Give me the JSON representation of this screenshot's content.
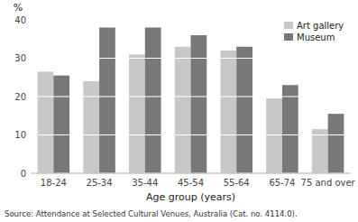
{
  "chart_data": {
    "type": "bar",
    "categories": [
      "18-24",
      "25-34",
      "35-44",
      "45-54",
      "55-64",
      "65-74",
      "75 and over"
    ],
    "series": [
      {
        "name": "Art gallery",
        "color": "#c8c8c8",
        "values": [
          26.5,
          24.0,
          31.0,
          33.0,
          32.0,
          19.5,
          11.5
        ]
      },
      {
        "name": "Museum",
        "color": "#787878",
        "values": [
          25.5,
          38.0,
          38.0,
          36.0,
          33.0,
          23.0,
          15.5
        ]
      }
    ],
    "xlabel": "Age group (years)",
    "ylabel": "%",
    "ylim": [
      0,
      40
    ],
    "yticks": [
      0,
      10,
      20,
      30,
      40
    ],
    "grid": true,
    "legend": "upper right",
    "annotations": [
      "Source: Attendance at Selected Cultural Venues, Australia (Cat. no. 4114.0)."
    ]
  }
}
